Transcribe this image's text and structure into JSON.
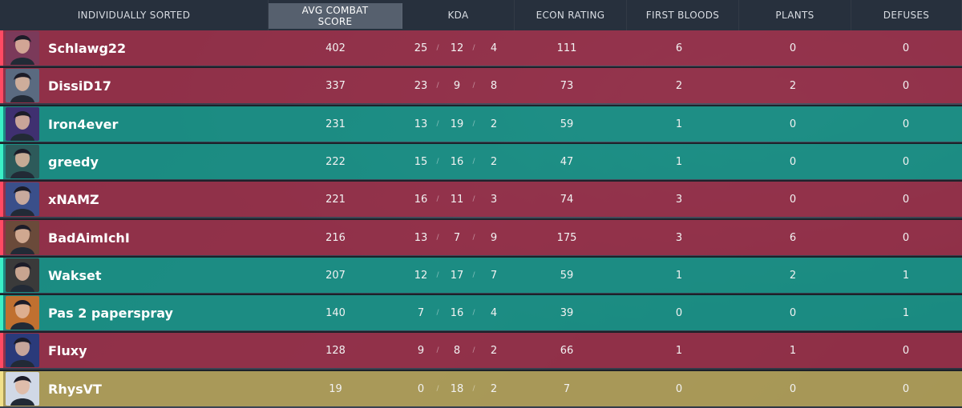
{
  "header": {
    "name_col": "INDIVIDUALLY SORTED",
    "acs_col": "AVG COMBAT SCORE",
    "kda_col": "KDA",
    "econ_col": "ECON RATING",
    "fb_col": "FIRST BLOODS",
    "plants_col": "PLANTS",
    "defuses_col": "DEFUSES"
  },
  "kda_separator": "/",
  "colors": {
    "enemy": "#a02e48",
    "ally": "#18968a",
    "self": "#b8a55a"
  },
  "players": [
    {
      "name": "Schlawg22",
      "team": "enemy",
      "avatar_icon": "agent-portrait-icon",
      "acs": "402",
      "k": "25",
      "d": "12",
      "a": "4",
      "econ": "111",
      "fb": "6",
      "plants": "0",
      "defuses": "0"
    },
    {
      "name": "DissiD17",
      "team": "enemy",
      "avatar_icon": "agent-portrait-icon",
      "acs": "337",
      "k": "23",
      "d": "9",
      "a": "8",
      "econ": "73",
      "fb": "2",
      "plants": "2",
      "defuses": "0"
    },
    {
      "name": "Iron4ever",
      "team": "ally",
      "avatar_icon": "agent-portrait-icon",
      "acs": "231",
      "k": "13",
      "d": "19",
      "a": "2",
      "econ": "59",
      "fb": "1",
      "plants": "0",
      "defuses": "0"
    },
    {
      "name": "greedy",
      "team": "ally",
      "avatar_icon": "agent-portrait-icon",
      "acs": "222",
      "k": "15",
      "d": "16",
      "a": "2",
      "econ": "47",
      "fb": "1",
      "plants": "0",
      "defuses": "0"
    },
    {
      "name": "xNAMZ",
      "team": "enemy",
      "avatar_icon": "agent-portrait-icon",
      "acs": "221",
      "k": "16",
      "d": "11",
      "a": "3",
      "econ": "74",
      "fb": "3",
      "plants": "0",
      "defuses": "0"
    },
    {
      "name": "BadAimIchI",
      "team": "enemy",
      "avatar_icon": "agent-portrait-icon",
      "acs": "216",
      "k": "13",
      "d": "7",
      "a": "9",
      "econ": "175",
      "fb": "3",
      "plants": "6",
      "defuses": "0"
    },
    {
      "name": "Wakset",
      "team": "ally",
      "avatar_icon": "agent-portrait-icon",
      "acs": "207",
      "k": "12",
      "d": "17",
      "a": "7",
      "econ": "59",
      "fb": "1",
      "plants": "2",
      "defuses": "1"
    },
    {
      "name": "Pas 2 paperspray",
      "team": "ally",
      "avatar_icon": "agent-portrait-icon",
      "acs": "140",
      "k": "7",
      "d": "16",
      "a": "4",
      "econ": "39",
      "fb": "0",
      "plants": "0",
      "defuses": "1"
    },
    {
      "name": "Fluxy",
      "team": "enemy",
      "avatar_icon": "agent-portrait-icon",
      "acs": "128",
      "k": "9",
      "d": "8",
      "a": "2",
      "econ": "66",
      "fb": "1",
      "plants": "1",
      "defuses": "0"
    },
    {
      "name": "RhysVT",
      "team": "self",
      "avatar_icon": "agent-portrait-icon",
      "acs": "19",
      "k": "0",
      "d": "18",
      "a": "2",
      "econ": "7",
      "fb": "0",
      "plants": "0",
      "defuses": "0"
    }
  ]
}
